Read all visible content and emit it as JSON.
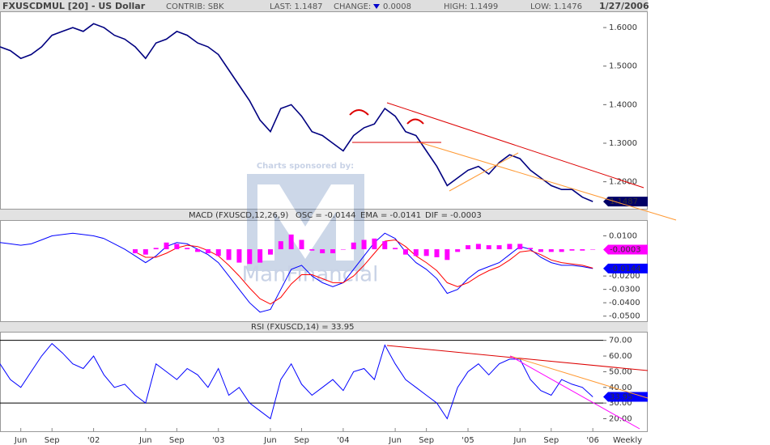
{
  "header": {
    "title": "FXUSCDMUL [20] - US Dollar",
    "contrib": "CONTRIB: SBK",
    "last": "LAST: 1.1487",
    "change_label": "CHANGE:",
    "change_value": "0.0008",
    "high": "HIGH: 1.1499",
    "low": "LOW: 1.1476",
    "date": "1/27/2006"
  },
  "watermark": {
    "caption": "Charts sponsored by:",
    "brand": "ManFinancial"
  },
  "time_axis": {
    "x": [
      0,
      1,
      2,
      3,
      4,
      5,
      6,
      7,
      8,
      9,
      10,
      11,
      12,
      13,
      14,
      15,
      16,
      17,
      18,
      19,
      20,
      21,
      22,
      23,
      24,
      25,
      26,
      27,
      28,
      29,
      30,
      31,
      32,
      33,
      34,
      35,
      36,
      37,
      38,
      39,
      40,
      41,
      42,
      43,
      44,
      45,
      46,
      47,
      48,
      49,
      50,
      51,
      52,
      53,
      54,
      55,
      56,
      57
    ],
    "xlim": [
      0,
      58
    ],
    "xticks": [
      {
        "value": 2,
        "label": "Jun"
      },
      {
        "value": 5,
        "label": "Sep"
      },
      {
        "value": 9,
        "label": "'02"
      },
      {
        "value": 14,
        "label": "Jun"
      },
      {
        "value": 17,
        "label": "Sep"
      },
      {
        "value": 21,
        "label": "'03"
      },
      {
        "value": 26,
        "label": "Jun"
      },
      {
        "value": 29,
        "label": "Sep"
      },
      {
        "value": 33,
        "label": "'04"
      },
      {
        "value": 38,
        "label": "Jun"
      },
      {
        "value": 41,
        "label": "Sep"
      },
      {
        "value": 45,
        "label": "'05"
      },
      {
        "value": 50,
        "label": "Jun"
      },
      {
        "value": 53,
        "label": "Sep"
      },
      {
        "value": 57,
        "label": "'06"
      }
    ],
    "period": "Weekly"
  },
  "chart_data": [
    {
      "type": "line",
      "ylim": [
        1.13,
        1.64
      ],
      "yticks": [
        {
          "value": 1.2,
          "label": "1.2000"
        },
        {
          "value": 1.3,
          "label": "1.3000"
        },
        {
          "value": 1.4,
          "label": "1.4000"
        },
        {
          "value": 1.5,
          "label": "1.5000"
        },
        {
          "value": 1.6,
          "label": "1.6000"
        }
      ],
      "series": [
        {
          "color": "#000080",
          "end_tag": true,
          "values": [
            1.55,
            1.54,
            1.52,
            1.53,
            1.55,
            1.58,
            1.59,
            1.6,
            1.59,
            1.61,
            1.6,
            1.58,
            1.57,
            1.55,
            1.52,
            1.56,
            1.57,
            1.59,
            1.58,
            1.56,
            1.55,
            1.53,
            1.49,
            1.45,
            1.41,
            1.36,
            1.33,
            1.39,
            1.4,
            1.37,
            1.33,
            1.32,
            1.3,
            1.28,
            1.32,
            1.34,
            1.35,
            1.39,
            1.37,
            1.33,
            1.32,
            1.28,
            1.24,
            1.19,
            1.21,
            1.23,
            1.24,
            1.22,
            1.25,
            1.27,
            1.26,
            1.23,
            1.21,
            1.19,
            1.18,
            1.18,
            1.16,
            1.1487
          ]
        }
      ]
    },
    {
      "type": "line",
      "title": "MACD (FXUSCD,12,26,9)",
      "ylim": [
        -0.0544,
        0.0212
      ],
      "yticks": [
        {
          "value": 0.01,
          "label": "0.0100"
        },
        {
          "value": -0.02,
          "label": "-0.0200"
        },
        {
          "value": -0.03,
          "label": "-0.0300"
        },
        {
          "value": -0.04,
          "label": "-0.0400"
        },
        {
          "value": -0.05,
          "label": "-0.0500"
        }
      ],
      "series": [
        {
          "name": "OSC = -0.0144",
          "color": "#0000ff",
          "end_tag": true,
          "values": [
            0.005,
            0.004,
            0.003,
            0.004,
            0.007,
            0.01,
            0.011,
            0.012,
            0.011,
            0.01,
            0.008,
            0.004,
            0.0,
            -0.005,
            -0.01,
            -0.005,
            0.002,
            0.005,
            0.004,
            0.0,
            -0.004,
            -0.01,
            -0.02,
            -0.03,
            -0.04,
            -0.047,
            -0.045,
            -0.03,
            -0.015,
            -0.012,
            -0.02,
            -0.025,
            -0.028,
            -0.025,
            -0.015,
            -0.005,
            0.005,
            0.012,
            0.008,
            -0.002,
            -0.01,
            -0.015,
            -0.022,
            -0.033,
            -0.03,
            -0.022,
            -0.016,
            -0.013,
            -0.01,
            -0.004,
            0.002,
            0.0,
            -0.006,
            -0.01,
            -0.012,
            -0.012,
            -0.013,
            -0.0144
          ]
        },
        {
          "name": "EMA = -0.0141",
          "color": "#ff0000",
          "values": [
            null,
            null,
            null,
            null,
            null,
            null,
            null,
            null,
            null,
            null,
            null,
            null,
            null,
            -0.002,
            -0.006,
            -0.006,
            -0.003,
            0.001,
            0.003,
            0.002,
            -0.001,
            -0.005,
            -0.012,
            -0.02,
            -0.029,
            -0.037,
            -0.041,
            -0.036,
            -0.026,
            -0.019,
            -0.019,
            -0.022,
            -0.025,
            -0.025,
            -0.02,
            -0.012,
            -0.003,
            0.006,
            0.007,
            0.002,
            -0.005,
            -0.01,
            -0.016,
            -0.025,
            -0.028,
            -0.025,
            -0.02,
            -0.016,
            -0.013,
            -0.008,
            -0.002,
            -0.001,
            -0.004,
            -0.008,
            -0.01,
            -0.011,
            -0.012,
            -0.0141
          ]
        },
        {
          "name": "DIF = -0.0003",
          "color": "#ff00ff",
          "style": "bar",
          "end_tag": true,
          "values": [
            null,
            null,
            null,
            null,
            null,
            null,
            null,
            null,
            null,
            null,
            null,
            null,
            null,
            -0.003,
            -0.004,
            0.001,
            0.005,
            0.004,
            0.001,
            -0.002,
            -0.003,
            -0.005,
            -0.008,
            -0.01,
            -0.011,
            -0.01,
            -0.004,
            0.006,
            0.011,
            0.007,
            -0.001,
            -0.003,
            -0.003,
            0.0,
            0.005,
            0.007,
            0.008,
            0.006,
            0.001,
            -0.004,
            -0.005,
            -0.005,
            -0.006,
            -0.008,
            -0.002,
            0.003,
            0.004,
            0.003,
            0.003,
            0.004,
            0.004,
            0.001,
            -0.002,
            -0.002,
            -0.002,
            -0.001,
            -0.001,
            -0.0003
          ]
        }
      ]
    },
    {
      "type": "line",
      "title": "RSI (FXUSCD,14) = 33.95",
      "ylim": [
        12,
        75
      ],
      "yticks": [
        {
          "value": 20,
          "label": "20.00"
        },
        {
          "value": 30,
          "label": "30.00"
        },
        {
          "value": 40,
          "label": "40.00"
        },
        {
          "value": 50,
          "label": "50.00"
        },
        {
          "value": 60,
          "label": "60.00"
        },
        {
          "value": 70,
          "label": "70.00"
        }
      ],
      "hlines": [
        70,
        30
      ],
      "series": [
        {
          "color": "#0000ff",
          "end_tag": true,
          "values": [
            55,
            45,
            40,
            50,
            60,
            68,
            62,
            55,
            52,
            60,
            48,
            40,
            42,
            35,
            30,
            55,
            50,
            45,
            52,
            48,
            40,
            52,
            35,
            40,
            30,
            25,
            20,
            45,
            55,
            42,
            35,
            40,
            45,
            38,
            50,
            52,
            45,
            67,
            55,
            45,
            40,
            35,
            30,
            20,
            40,
            50,
            55,
            48,
            55,
            58,
            58,
            45,
            38,
            35,
            45,
            42,
            40,
            33.95
          ]
        }
      ]
    }
  ]
}
